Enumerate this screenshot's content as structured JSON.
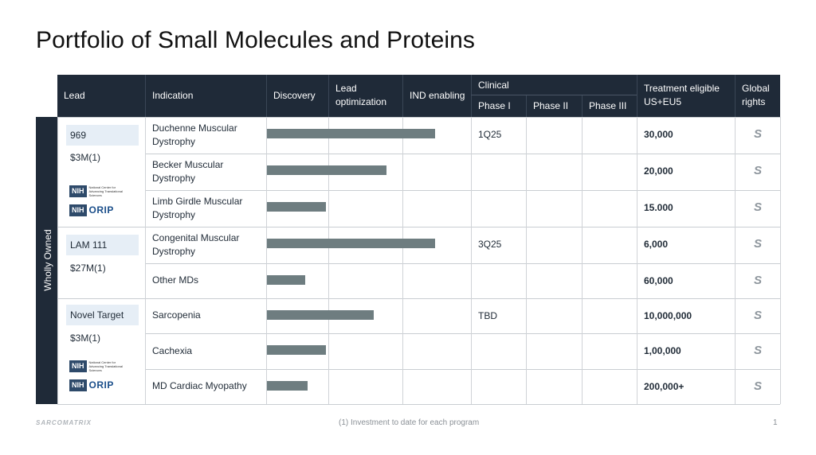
{
  "title": "Portfolio of Small Molecules and Proteins",
  "headers": {
    "lead": "Lead",
    "indication": "Indication",
    "discovery": "Discovery",
    "lead_opt_1": "Lead",
    "lead_opt_2": "optimization",
    "ind": "IND enabling",
    "clinical": "Clinical",
    "phase1": "Phase I",
    "phase2": "Phase II",
    "phase3": "Phase III",
    "treatment_1": "Treatment eligible",
    "treatment_2": "US+EU5",
    "global_1": "Global",
    "global_2": "rights"
  },
  "sidebar_label": "Wholly Owned",
  "leads": [
    {
      "name": "969",
      "investment": "$3M(1)",
      "logos": [
        "NIH",
        "ORIP"
      ]
    },
    {
      "name": "LAM 111",
      "investment": "$27M(1)",
      "logos": []
    },
    {
      "name": "Novel Target",
      "investment": "$3M(1)",
      "logos": [
        "NIH",
        "ORIP"
      ]
    }
  ],
  "logo_text": {
    "nih": "NIH",
    "nih_caption": "National Center for Advancing Translational Sciences",
    "orip": "ORIP"
  },
  "rows": [
    {
      "indication_1": "Duchenne Muscular",
      "indication_2": "Dystrophy",
      "progress": 0.66,
      "phase1": "1Q25",
      "eligible": "30,000"
    },
    {
      "indication_1": "Becker Muscular",
      "indication_2": "Dystrophy",
      "progress": 0.47,
      "phase1": "",
      "eligible": "20,000"
    },
    {
      "indication_1": "Limb Girdle Muscular",
      "indication_2": "Dystrophy",
      "progress": 0.23,
      "phase1": "",
      "eligible": "15.000"
    },
    {
      "indication_1": "Congenital Muscular",
      "indication_2": "Dystrophy",
      "progress": 0.66,
      "phase1": "3Q25",
      "eligible": "6,000"
    },
    {
      "indication_1": "Other MDs",
      "indication_2": "",
      "progress": 0.15,
      "phase1": "",
      "eligible": "60,000"
    },
    {
      "indication_1": "Sarcopenia",
      "indication_2": "",
      "progress": 0.42,
      "phase1": "TBD",
      "eligible": "10,000,000"
    },
    {
      "indication_1": "Cachexia",
      "indication_2": "",
      "progress": 0.23,
      "phase1": "",
      "eligible": "1,00,000"
    },
    {
      "indication_1": "MD Cardiac Myopathy",
      "indication_2": "",
      "progress": 0.16,
      "phase1": "",
      "eligible": "200,000+"
    }
  ],
  "global_rights_icon": "sarcomatrix-s-icon",
  "global_rights_glyph": "S",
  "footer": {
    "brand": "SARCOMATRIX",
    "note": "(1) Investment to date for each program",
    "page": "1"
  }
}
